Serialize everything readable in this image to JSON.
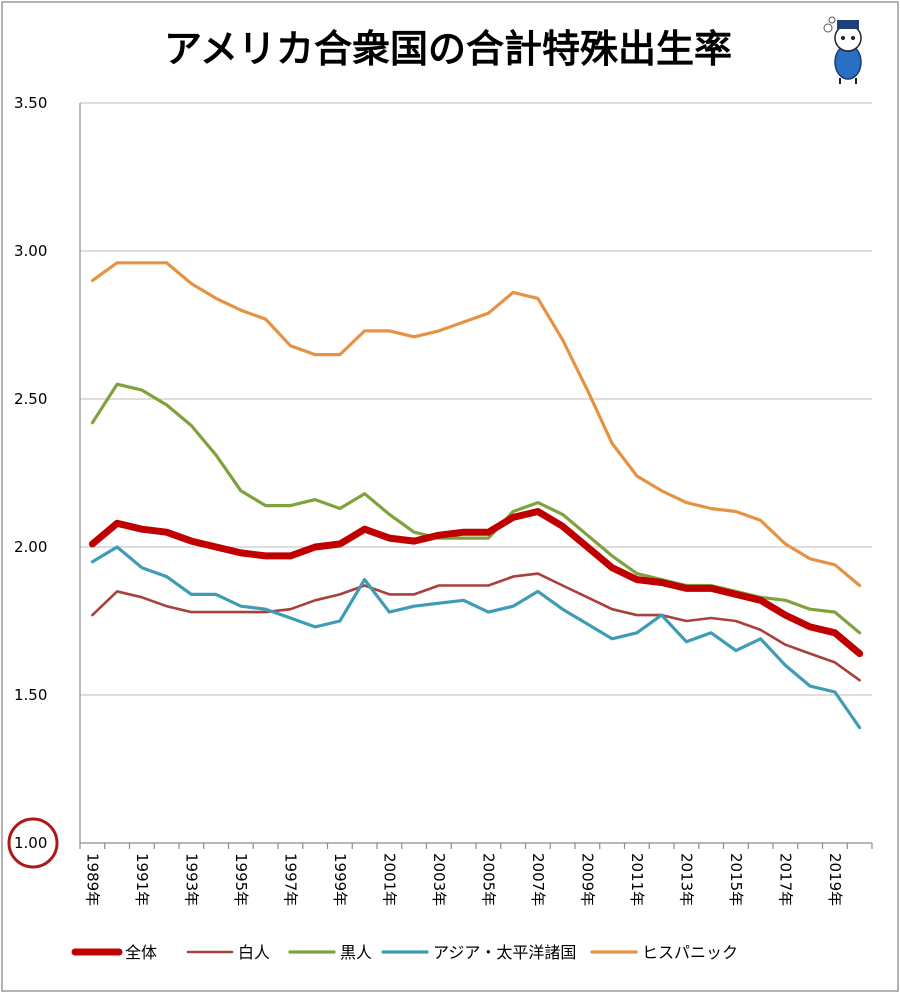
{
  "chart_data": {
    "type": "line",
    "title": "アメリカ合衆国の合計特殊出生率",
    "x": [
      "1989年",
      "1990年",
      "1991年",
      "1992年",
      "1993年",
      "1994年",
      "1995年",
      "1996年",
      "1997年",
      "1998年",
      "1999年",
      "2000年",
      "2001年",
      "2002年",
      "2003年",
      "2004年",
      "2005年",
      "2006年",
      "2007年",
      "2008年",
      "2009年",
      "2010年",
      "2011年",
      "2012年",
      "2013年",
      "2014年",
      "2015年",
      "2016年",
      "2017年",
      "2018年",
      "2019年",
      "2020年"
    ],
    "x_tick_labels": [
      "1989年",
      "1991年",
      "1993年",
      "1995年",
      "1997年",
      "1999年",
      "2001年",
      "2003年",
      "2005年",
      "2007年",
      "2009年",
      "2011年",
      "2013年",
      "2015年",
      "2017年",
      "2019年"
    ],
    "y_tick_labels": [
      "3.50",
      "3.00",
      "2.50",
      "2.00",
      "1.50",
      "1.00"
    ],
    "ylim": [
      1.0,
      3.5
    ],
    "highlighted_tick": "1.00",
    "series": [
      {
        "name": "全体",
        "color": "#c00000",
        "width": "bold",
        "values": [
          2.01,
          2.08,
          2.06,
          2.05,
          2.02,
          2.0,
          1.98,
          1.97,
          1.97,
          2.0,
          2.01,
          2.06,
          2.03,
          2.02,
          2.04,
          2.05,
          2.05,
          2.1,
          2.12,
          2.07,
          2.0,
          1.93,
          1.89,
          1.88,
          1.86,
          1.86,
          1.84,
          1.82,
          1.77,
          1.73,
          1.71,
          1.64
        ]
      },
      {
        "name": "白人",
        "color": "#a8403e",
        "width": "thin",
        "values": [
          1.77,
          1.85,
          1.83,
          1.8,
          1.78,
          1.78,
          1.78,
          1.78,
          1.79,
          1.82,
          1.84,
          1.87,
          1.84,
          1.84,
          1.87,
          1.87,
          1.87,
          1.9,
          1.91,
          1.87,
          1.83,
          1.79,
          1.77,
          1.77,
          1.75,
          1.76,
          1.75,
          1.72,
          1.67,
          1.64,
          1.61,
          1.55
        ]
      },
      {
        "name": "黒人",
        "color": "#7fa23e",
        "width": "normal",
        "values": [
          2.42,
          2.55,
          2.53,
          2.48,
          2.41,
          2.31,
          2.19,
          2.14,
          2.14,
          2.16,
          2.13,
          2.18,
          2.11,
          2.05,
          2.03,
          2.03,
          2.03,
          2.12,
          2.15,
          2.11,
          2.04,
          1.97,
          1.91,
          1.89,
          1.87,
          1.87,
          1.85,
          1.83,
          1.82,
          1.79,
          1.78,
          1.71
        ]
      },
      {
        "name": "アジア・太平洋諸国",
        "color": "#3e9cb5",
        "width": "normal",
        "values": [
          1.95,
          2.0,
          1.93,
          1.9,
          1.84,
          1.84,
          1.8,
          1.79,
          1.76,
          1.73,
          1.75,
          1.89,
          1.78,
          1.8,
          1.81,
          1.82,
          1.78,
          1.8,
          1.85,
          1.79,
          1.74,
          1.69,
          1.71,
          1.77,
          1.68,
          1.71,
          1.65,
          1.69,
          1.6,
          1.53,
          1.51,
          1.39
        ]
      },
      {
        "name": "ヒスパニック",
        "color": "#e59342",
        "width": "normal",
        "values": [
          2.9,
          2.96,
          2.96,
          2.96,
          2.89,
          2.84,
          2.8,
          2.77,
          2.68,
          2.65,
          2.65,
          2.73,
          2.73,
          2.71,
          2.73,
          2.76,
          2.79,
          2.86,
          2.84,
          2.7,
          2.53,
          2.35,
          2.24,
          2.19,
          2.15,
          2.13,
          2.12,
          2.09,
          2.01,
          1.96,
          1.94,
          1.87
        ]
      }
    ]
  }
}
